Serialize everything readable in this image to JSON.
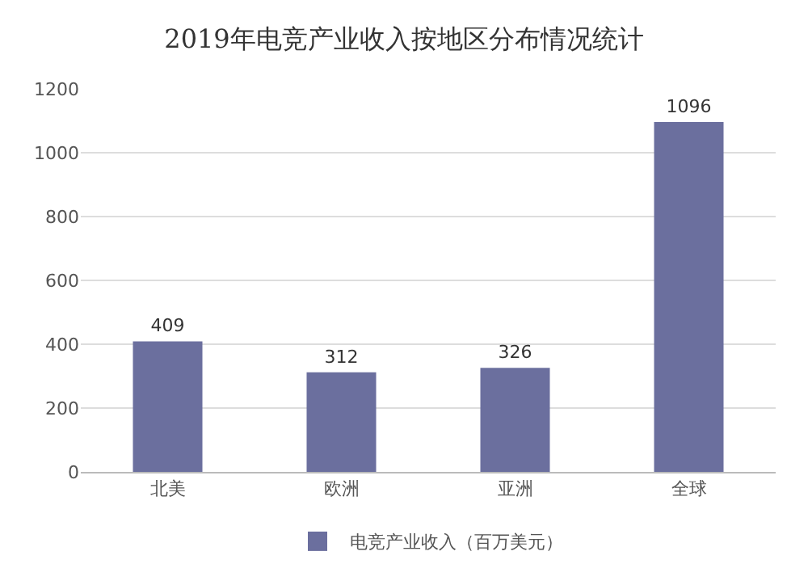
{
  "chart_data": {
    "type": "bar",
    "title": "2019年电竞产业收入按地区分布情况统计",
    "categories": [
      "北美",
      "欧洲",
      "亚洲",
      "全球"
    ],
    "series": [
      {
        "name": "电竞产业收入（百万美元）",
        "color": "#6b6f9e",
        "values": [
          409,
          312,
          326,
          1096
        ]
      }
    ],
    "ylim": [
      0,
      1200
    ],
    "yticks": [
      0,
      200,
      400,
      600,
      800,
      1000,
      1200
    ],
    "grid": "y",
    "legend": "bottom",
    "data_labels": true
  }
}
